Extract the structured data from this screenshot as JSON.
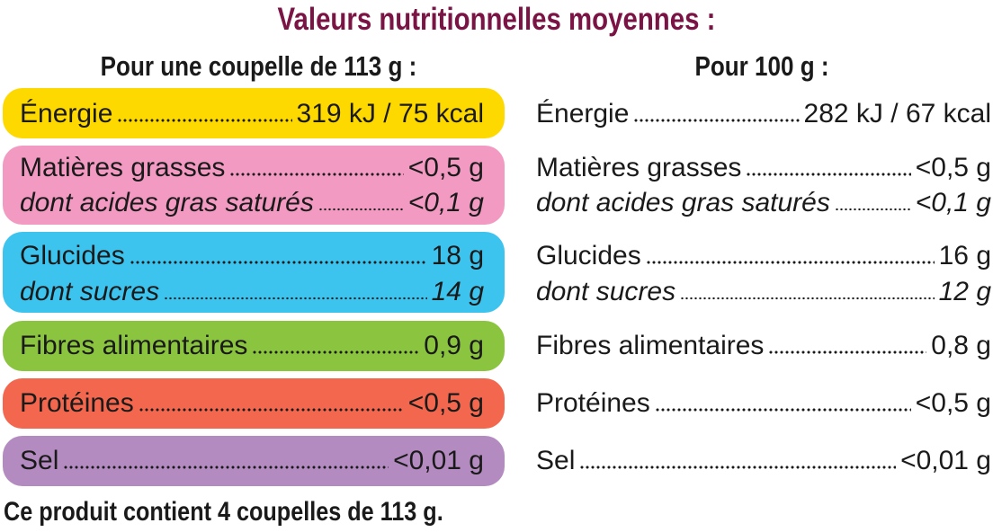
{
  "title": "Valeurs nutritionnelles moyennes :",
  "headers": {
    "per_portion": "Pour une coupelle de 113 g :",
    "per_100g": "Pour 100 g :"
  },
  "colors": {
    "title": "#7a1445",
    "energie": "#fdd900",
    "matieres_grasses": "#f29ac2",
    "glucides": "#3cc4ef",
    "fibres": "#8bc53f",
    "proteines": "#f2674d",
    "sel": "#b48bc0"
  },
  "rows": {
    "energie": {
      "label": "Énergie",
      "portion": "319 kJ / 75 kcal",
      "per100": "282 kJ / 67 kcal"
    },
    "matieres": {
      "label": "Matières grasses",
      "portion": "<0,5 g",
      "per100": "<0,5 g"
    },
    "satures": {
      "label": "dont acides gras saturés",
      "portion": "<0,1 g",
      "per100": "<0,1 g"
    },
    "glucides": {
      "label": "Glucides",
      "portion": "18 g",
      "per100": "16 g"
    },
    "sucres": {
      "label": "dont sucres",
      "portion": "14 g",
      "per100": "12 g"
    },
    "fibres": {
      "label": "Fibres alimentaires",
      "portion": "0,9 g",
      "per100": "0,8 g"
    },
    "proteines": {
      "label": "Protéines",
      "portion": "<0,5 g",
      "per100": "<0,5 g"
    },
    "sel": {
      "label": "Sel",
      "portion": "<0,01 g",
      "per100": "<0,01 g"
    }
  },
  "footer": "Ce produit contient 4 coupelles de 113 g."
}
